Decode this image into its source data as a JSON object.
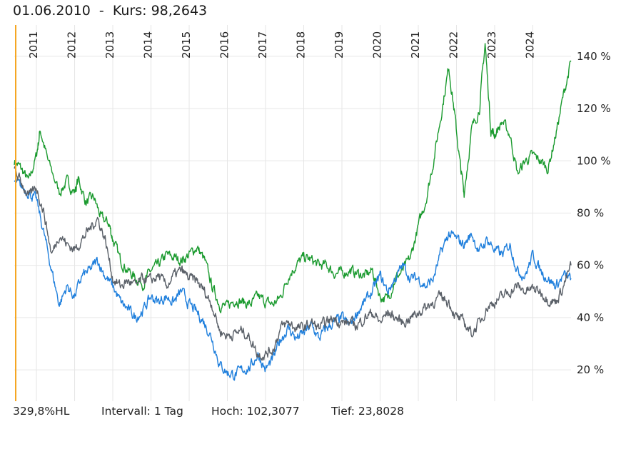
{
  "header": {
    "date": "01.06.2010",
    "separator": "-",
    "kurs_label": "Kurs:",
    "kurs_value": "98,2643"
  },
  "footer": {
    "scale": "329,8%HL",
    "interval": "Intervall: 1 Tag",
    "high": "Hoch: 102,3077",
    "low": "Tief: 23,8028"
  },
  "colors": {
    "green": "#1a9a2e",
    "blue": "#1f7fdc",
    "gray": "#5a6068",
    "grid": "#e6e6e6",
    "marker": "#f5a623"
  },
  "chart_data": {
    "type": "line",
    "x_labels": [
      "2011",
      "2012",
      "2013",
      "2014",
      "2015",
      "2016",
      "2017",
      "2018",
      "2019",
      "2020",
      "2021",
      "2022",
      "2023",
      "2024"
    ],
    "y_ticks": [
      "140 %",
      "120 %",
      "100 %",
      "80 %",
      "60 %",
      "40 %",
      "20 %"
    ],
    "y_tick_values": [
      140,
      120,
      100,
      80,
      60,
      40,
      20
    ],
    "xlim": [
      2010.42,
      2025.0
    ],
    "ylim": [
      8,
      152
    ],
    "series": [
      {
        "color": "#1a9a2e",
        "points": [
          [
            2010.42,
            100
          ],
          [
            2010.6,
            97
          ],
          [
            2010.8,
            92
          ],
          [
            2011.0,
            102
          ],
          [
            2011.1,
            112
          ],
          [
            2011.3,
            100
          ],
          [
            2011.6,
            88
          ],
          [
            2011.8,
            92
          ],
          [
            2012.0,
            88
          ],
          [
            2012.1,
            93
          ],
          [
            2012.3,
            84
          ],
          [
            2012.5,
            86
          ],
          [
            2012.7,
            78
          ],
          [
            2012.9,
            76
          ],
          [
            2013.0,
            70
          ],
          [
            2013.2,
            62
          ],
          [
            2013.4,
            58
          ],
          [
            2013.6,
            55
          ],
          [
            2013.8,
            53
          ],
          [
            2014.0,
            58
          ],
          [
            2014.2,
            60
          ],
          [
            2014.4,
            64
          ],
          [
            2014.6,
            63
          ],
          [
            2014.8,
            62
          ],
          [
            2015.0,
            64
          ],
          [
            2015.2,
            67
          ],
          [
            2015.4,
            62
          ],
          [
            2015.6,
            52
          ],
          [
            2015.8,
            45
          ],
          [
            2016.0,
            44
          ],
          [
            2016.2,
            47
          ],
          [
            2016.4,
            46
          ],
          [
            2016.6,
            45
          ],
          [
            2016.8,
            48
          ],
          [
            2017.0,
            46
          ],
          [
            2017.2,
            45
          ],
          [
            2017.4,
            48
          ],
          [
            2017.6,
            56
          ],
          [
            2017.8,
            60
          ],
          [
            2018.0,
            63
          ],
          [
            2018.2,
            62
          ],
          [
            2018.4,
            60
          ],
          [
            2018.6,
            60
          ],
          [
            2018.8,
            57
          ],
          [
            2019.0,
            57
          ],
          [
            2019.2,
            58
          ],
          [
            2019.4,
            57
          ],
          [
            2019.6,
            56
          ],
          [
            2019.8,
            58
          ],
          [
            2020.0,
            48
          ],
          [
            2020.2,
            47
          ],
          [
            2020.4,
            55
          ],
          [
            2020.6,
            58
          ],
          [
            2020.8,
            63
          ],
          [
            2021.0,
            75
          ],
          [
            2021.2,
            85
          ],
          [
            2021.4,
            100
          ],
          [
            2021.6,
            118
          ],
          [
            2021.8,
            136
          ],
          [
            2021.95,
            118
          ],
          [
            2022.1,
            98
          ],
          [
            2022.2,
            88
          ],
          [
            2022.4,
            112
          ],
          [
            2022.6,
            120
          ],
          [
            2022.75,
            145
          ],
          [
            2022.9,
            112
          ],
          [
            2023.0,
            110
          ],
          [
            2023.2,
            115
          ],
          [
            2023.4,
            110
          ],
          [
            2023.6,
            95
          ],
          [
            2023.8,
            100
          ],
          [
            2024.0,
            102
          ],
          [
            2024.2,
            100
          ],
          [
            2024.4,
            97
          ],
          [
            2024.6,
            110
          ],
          [
            2024.8,
            125
          ],
          [
            2025.0,
            138
          ]
        ]
      },
      {
        "color": "#1f7fdc",
        "points": [
          [
            2010.42,
            92
          ],
          [
            2010.6,
            90
          ],
          [
            2010.8,
            88
          ],
          [
            2011.0,
            85
          ],
          [
            2011.2,
            72
          ],
          [
            2011.4,
            58
          ],
          [
            2011.6,
            45
          ],
          [
            2011.8,
            52
          ],
          [
            2012.0,
            48
          ],
          [
            2012.2,
            56
          ],
          [
            2012.4,
            58
          ],
          [
            2012.6,
            62
          ],
          [
            2012.8,
            56
          ],
          [
            2013.0,
            52
          ],
          [
            2013.2,
            46
          ],
          [
            2013.4,
            43
          ],
          [
            2013.6,
            40
          ],
          [
            2013.8,
            43
          ],
          [
            2014.0,
            48
          ],
          [
            2014.2,
            46
          ],
          [
            2014.4,
            48
          ],
          [
            2014.6,
            46
          ],
          [
            2014.8,
            50
          ],
          [
            2015.0,
            45
          ],
          [
            2015.2,
            42
          ],
          [
            2015.4,
            38
          ],
          [
            2015.6,
            32
          ],
          [
            2015.8,
            22
          ],
          [
            2016.0,
            19
          ],
          [
            2016.2,
            18
          ],
          [
            2016.4,
            20
          ],
          [
            2016.6,
            21
          ],
          [
            2016.8,
            26
          ],
          [
            2017.0,
            20
          ],
          [
            2017.2,
            24
          ],
          [
            2017.4,
            32
          ],
          [
            2017.6,
            36
          ],
          [
            2017.8,
            32
          ],
          [
            2018.0,
            34
          ],
          [
            2018.2,
            37
          ],
          [
            2018.4,
            32
          ],
          [
            2018.6,
            36
          ],
          [
            2018.8,
            38
          ],
          [
            2019.0,
            40
          ],
          [
            2019.2,
            37
          ],
          [
            2019.4,
            42
          ],
          [
            2019.6,
            46
          ],
          [
            2019.8,
            50
          ],
          [
            2020.0,
            56
          ],
          [
            2020.2,
            50
          ],
          [
            2020.4,
            55
          ],
          [
            2020.6,
            60
          ],
          [
            2020.8,
            55
          ],
          [
            2021.0,
            55
          ],
          [
            2021.2,
            52
          ],
          [
            2021.4,
            55
          ],
          [
            2021.6,
            65
          ],
          [
            2021.8,
            72
          ],
          [
            2022.0,
            70
          ],
          [
            2022.2,
            68
          ],
          [
            2022.4,
            72
          ],
          [
            2022.6,
            65
          ],
          [
            2022.8,
            70
          ],
          [
            2023.0,
            66
          ],
          [
            2023.2,
            64
          ],
          [
            2023.4,
            68
          ],
          [
            2023.6,
            58
          ],
          [
            2023.8,
            56
          ],
          [
            2024.0,
            64
          ],
          [
            2024.2,
            58
          ],
          [
            2024.4,
            55
          ],
          [
            2024.6,
            52
          ],
          [
            2024.8,
            56
          ],
          [
            2025.0,
            55
          ]
        ]
      },
      {
        "color": "#5a6068",
        "points": [
          [
            2010.42,
            96
          ],
          [
            2010.6,
            92
          ],
          [
            2010.8,
            86
          ],
          [
            2011.0,
            90
          ],
          [
            2011.2,
            80
          ],
          [
            2011.4,
            64
          ],
          [
            2011.6,
            72
          ],
          [
            2011.8,
            68
          ],
          [
            2012.0,
            66
          ],
          [
            2012.2,
            70
          ],
          [
            2012.4,
            74
          ],
          [
            2012.6,
            78
          ],
          [
            2012.8,
            70
          ],
          [
            2013.0,
            55
          ],
          [
            2013.2,
            52
          ],
          [
            2013.4,
            54
          ],
          [
            2013.6,
            52
          ],
          [
            2013.8,
            55
          ],
          [
            2014.0,
            54
          ],
          [
            2014.2,
            56
          ],
          [
            2014.4,
            52
          ],
          [
            2014.6,
            56
          ],
          [
            2014.8,
            58
          ],
          [
            2015.0,
            55
          ],
          [
            2015.2,
            54
          ],
          [
            2015.4,
            50
          ],
          [
            2015.6,
            45
          ],
          [
            2015.8,
            35
          ],
          [
            2016.0,
            33
          ],
          [
            2016.2,
            34
          ],
          [
            2016.4,
            35
          ],
          [
            2016.6,
            32
          ],
          [
            2016.8,
            26
          ],
          [
            2017.0,
            26
          ],
          [
            2017.2,
            28
          ],
          [
            2017.4,
            36
          ],
          [
            2017.6,
            38
          ],
          [
            2017.8,
            36
          ],
          [
            2018.0,
            36
          ],
          [
            2018.2,
            38
          ],
          [
            2018.4,
            36
          ],
          [
            2018.6,
            38
          ],
          [
            2018.8,
            40
          ],
          [
            2019.0,
            38
          ],
          [
            2019.2,
            38
          ],
          [
            2019.4,
            37
          ],
          [
            2019.6,
            40
          ],
          [
            2019.8,
            42
          ],
          [
            2020.0,
            38
          ],
          [
            2020.2,
            42
          ],
          [
            2020.4,
            40
          ],
          [
            2020.6,
            38
          ],
          [
            2020.8,
            40
          ],
          [
            2021.0,
            42
          ],
          [
            2021.2,
            44
          ],
          [
            2021.4,
            46
          ],
          [
            2021.6,
            48
          ],
          [
            2021.8,
            46
          ],
          [
            2022.0,
            40
          ],
          [
            2022.2,
            38
          ],
          [
            2022.4,
            34
          ],
          [
            2022.6,
            38
          ],
          [
            2022.8,
            44
          ],
          [
            2023.0,
            46
          ],
          [
            2023.2,
            48
          ],
          [
            2023.4,
            50
          ],
          [
            2023.6,
            52
          ],
          [
            2023.8,
            50
          ],
          [
            2024.0,
            51
          ],
          [
            2024.2,
            50
          ],
          [
            2024.4,
            47
          ],
          [
            2024.6,
            46
          ],
          [
            2024.8,
            52
          ],
          [
            2025.0,
            60
          ]
        ]
      }
    ]
  }
}
